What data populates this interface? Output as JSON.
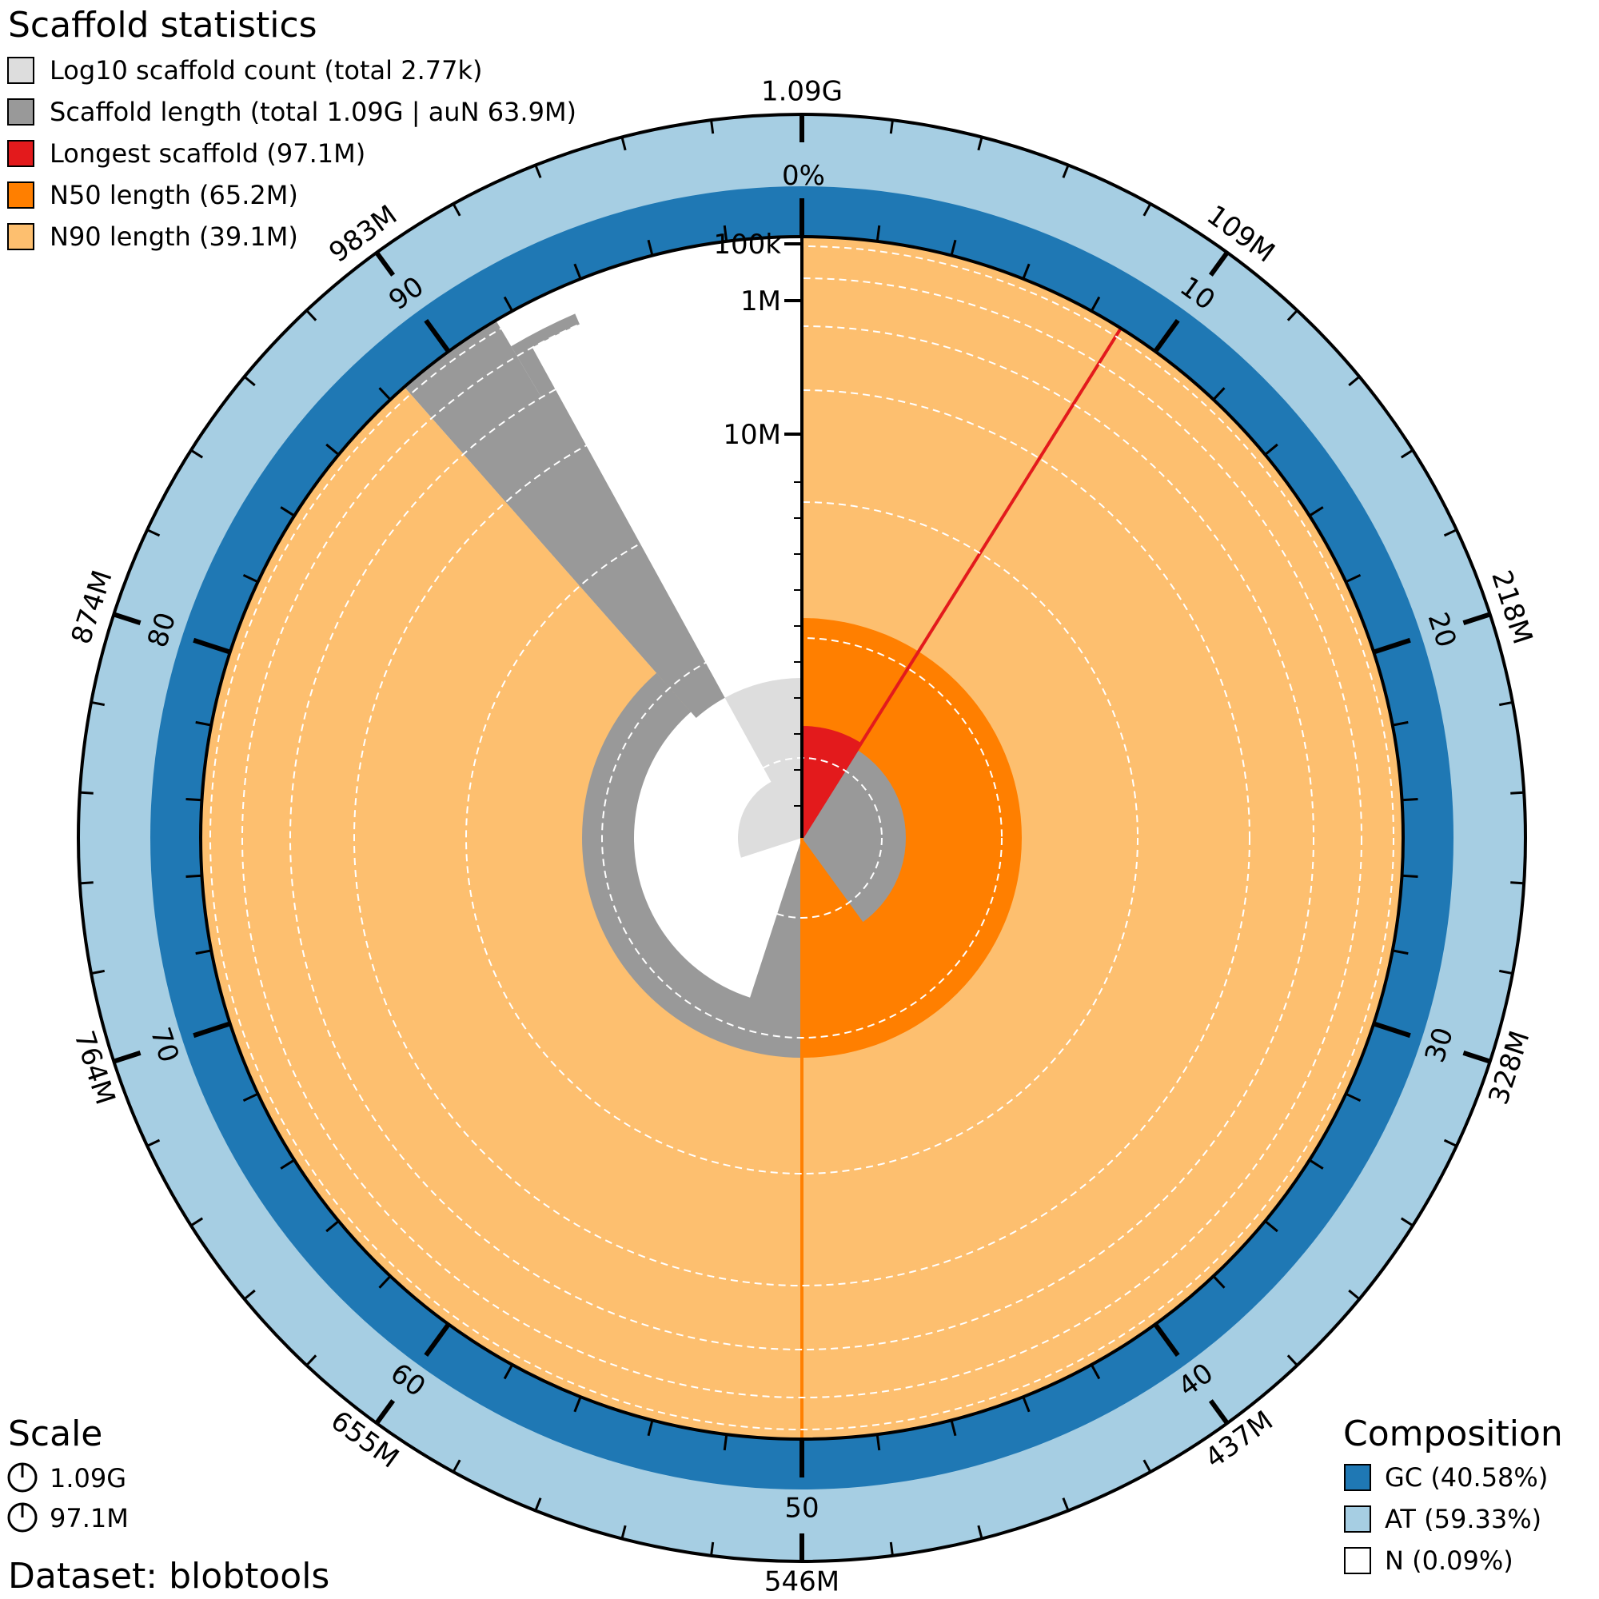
{
  "chart_data": {
    "type": "snail",
    "title": "Scaffold statistics",
    "dataset_label": "Dataset: blobtools",
    "legend": [
      {
        "label": "Log10 scaffold count (total 2.77k)",
        "color": "#dddddd"
      },
      {
        "label": "Scaffold length (total 1.09G | auN 63.9M)",
        "color": "#999999"
      },
      {
        "label": "Longest scaffold (97.1M)",
        "color": "#e31a1c"
      },
      {
        "label": "N50 length (65.2M)",
        "color": "#ff7f00"
      },
      {
        "label": "N90 length (39.1M)",
        "color": "#fdbf6f"
      }
    ],
    "stats": {
      "total_length": 1090000000,
      "scaffold_count": 2770,
      "longest_scaffold": 97100000,
      "n50_length": 65200000,
      "n90_length": 39100000,
      "aun": 63900000,
      "n50_percent": 50,
      "n90_percent": 88.5,
      "longest_fraction": 0.089
    },
    "percent_ticks": [
      "10",
      "20",
      "30",
      "40",
      "50",
      "60",
      "70",
      "80",
      "90"
    ],
    "length_ticks": [
      "1.09G",
      "109M",
      "218M",
      "328M",
      "437M",
      "546M",
      "655M",
      "764M",
      "874M",
      "983M"
    ],
    "radial_labels": [
      "100k",
      "1M",
      "10M"
    ],
    "radial_values": [
      100000,
      1000000,
      10000000
    ],
    "gc_profile_label": "0%",
    "scale": {
      "title": "Scale",
      "items": [
        "1.09G",
        "97.1M"
      ]
    },
    "composition": {
      "title": "Composition",
      "items": [
        {
          "label": "GC (40.58%)",
          "color": "#1f78b4"
        },
        {
          "label": "AT (59.33%)",
          "color": "#a6cee3"
        },
        {
          "label": "N (0.09%)",
          "color": "#ffffff"
        }
      ],
      "gc": 40.58,
      "at": 59.33,
      "n": 0.09
    }
  }
}
